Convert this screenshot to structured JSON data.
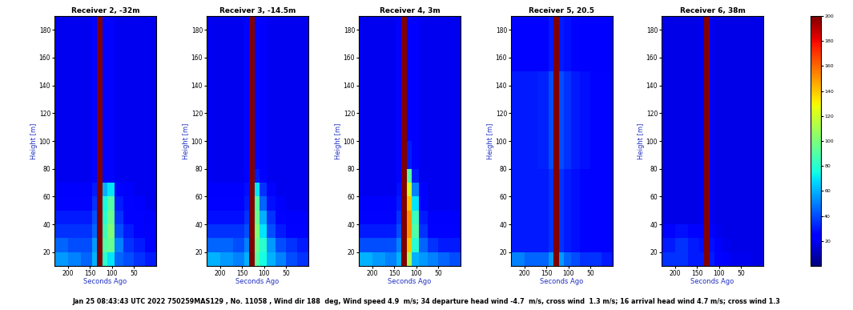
{
  "chart_data": [
    {
      "type": "heatmap",
      "title": "Receiver 2, -32m",
      "x_label": "Seconds Ago",
      "y_label": "Height [m]",
      "xlim": [
        230,
        0
      ],
      "ylim": [
        10,
        190
      ],
      "xticks": [
        200,
        150,
        100,
        50
      ],
      "yticks": [
        20,
        40,
        60,
        80,
        100,
        120,
        140,
        160,
        180
      ],
      "x_edges": [
        230,
        200,
        170,
        145,
        134,
        122,
        110,
        95,
        75,
        50,
        25,
        0
      ],
      "y_edges": [
        10,
        20,
        30,
        40,
        50,
        60,
        70,
        80,
        100,
        120,
        150,
        190
      ],
      "cells": [
        [
          55,
          50,
          45,
          60,
          200,
          80,
          70,
          45,
          40,
          35,
          30
        ],
        [
          45,
          40,
          40,
          55,
          200,
          90,
          95,
          50,
          35,
          30,
          25
        ],
        [
          35,
          35,
          35,
          45,
          200,
          85,
          100,
          40,
          30,
          25,
          25
        ],
        [
          30,
          30,
          30,
          40,
          200,
          80,
          95,
          35,
          25,
          25,
          22
        ],
        [
          25,
          25,
          25,
          35,
          200,
          75,
          90,
          30,
          25,
          22,
          20
        ],
        [
          22,
          22,
          22,
          30,
          200,
          60,
          70,
          25,
          22,
          20,
          20
        ],
        [
          20,
          20,
          20,
          25,
          200,
          25,
          25,
          20,
          20,
          20,
          20
        ],
        [
          20,
          20,
          20,
          25,
          200,
          25,
          25,
          20,
          20,
          20,
          20
        ],
        [
          20,
          20,
          20,
          25,
          200,
          25,
          25,
          20,
          20,
          20,
          20
        ],
        [
          20,
          20,
          20,
          25,
          200,
          25,
          25,
          20,
          20,
          20,
          20
        ],
        [
          20,
          20,
          20,
          25,
          200,
          25,
          25,
          20,
          20,
          20,
          20
        ]
      ]
    },
    {
      "type": "heatmap",
      "title": "Receiver 3, -14.5m",
      "x_label": "Seconds Ago",
      "y_label": "Height [m]",
      "xlim": [
        230,
        0
      ],
      "ylim": [
        10,
        190
      ],
      "xticks": [
        200,
        150,
        100,
        50
      ],
      "yticks": [
        20,
        40,
        60,
        80,
        100,
        120,
        140,
        160,
        180
      ],
      "x_edges": [
        230,
        200,
        170,
        145,
        134,
        122,
        110,
        95,
        75,
        50,
        25,
        0
      ],
      "y_edges": [
        10,
        20,
        30,
        40,
        50,
        60,
        70,
        80,
        100,
        120,
        150,
        190
      ],
      "cells": [
        [
          60,
          55,
          50,
          60,
          200,
          90,
          75,
          60,
          50,
          40,
          35
        ],
        [
          45,
          45,
          40,
          50,
          200,
          95,
          80,
          55,
          40,
          35,
          30
        ],
        [
          35,
          35,
          35,
          40,
          200,
          100,
          70,
          40,
          30,
          25,
          25
        ],
        [
          28,
          28,
          28,
          35,
          200,
          95,
          60,
          35,
          25,
          22,
          22
        ],
        [
          25,
          25,
          25,
          30,
          200,
          90,
          45,
          28,
          22,
          20,
          20
        ],
        [
          22,
          22,
          22,
          28,
          200,
          70,
          35,
          25,
          20,
          20,
          20
        ],
        [
          20,
          20,
          20,
          25,
          200,
          30,
          25,
          20,
          20,
          20,
          20
        ],
        [
          20,
          20,
          20,
          25,
          200,
          25,
          22,
          20,
          20,
          20,
          20
        ],
        [
          20,
          20,
          20,
          25,
          200,
          25,
          22,
          20,
          20,
          20,
          20
        ],
        [
          20,
          20,
          20,
          25,
          200,
          25,
          22,
          20,
          20,
          20,
          20
        ],
        [
          20,
          20,
          20,
          25,
          200,
          25,
          22,
          20,
          20,
          20,
          20
        ]
      ]
    },
    {
      "type": "heatmap",
      "title": "Receiver 4, 3m",
      "x_label": "Seconds Ago",
      "y_label": "Height [m]",
      "xlim": [
        230,
        0
      ],
      "ylim": [
        10,
        190
      ],
      "xticks": [
        200,
        150,
        100,
        50
      ],
      "yticks": [
        20,
        40,
        60,
        80,
        100,
        120,
        140,
        160,
        180
      ],
      "x_edges": [
        230,
        200,
        170,
        145,
        134,
        122,
        110,
        95,
        75,
        50,
        25,
        0
      ],
      "y_edges": [
        10,
        20,
        30,
        40,
        50,
        60,
        70,
        80,
        100,
        120,
        150,
        190
      ],
      "cells": [
        [
          60,
          55,
          50,
          60,
          200,
          110,
          60,
          55,
          50,
          45,
          40
        ],
        [
          40,
          40,
          40,
          50,
          200,
          140,
          80,
          45,
          35,
          30,
          30
        ],
        [
          30,
          30,
          30,
          40,
          200,
          150,
          90,
          35,
          25,
          25,
          25
        ],
        [
          25,
          25,
          25,
          35,
          200,
          150,
          85,
          30,
          22,
          22,
          22
        ],
        [
          22,
          22,
          22,
          30,
          200,
          140,
          70,
          25,
          20,
          20,
          20
        ],
        [
          20,
          20,
          20,
          28,
          200,
          120,
          50,
          22,
          20,
          20,
          20
        ],
        [
          20,
          20,
          20,
          25,
          200,
          90,
          30,
          20,
          20,
          20,
          20
        ],
        [
          20,
          20,
          20,
          25,
          200,
          30,
          22,
          20,
          20,
          20,
          20
        ],
        [
          20,
          20,
          20,
          25,
          200,
          25,
          22,
          20,
          20,
          20,
          20
        ],
        [
          20,
          20,
          20,
          25,
          200,
          25,
          22,
          20,
          20,
          20,
          20
        ],
        [
          20,
          20,
          20,
          25,
          200,
          25,
          22,
          20,
          20,
          20,
          20
        ]
      ]
    },
    {
      "type": "heatmap",
      "title": "Receiver 5, 20.5",
      "x_label": "Seconds Ago",
      "y_label": "Height [m]",
      "xlim": [
        230,
        0
      ],
      "ylim": [
        10,
        190
      ],
      "xticks": [
        200,
        150,
        100,
        50
      ],
      "yticks": [
        20,
        40,
        60,
        80,
        100,
        120,
        140,
        160,
        180
      ],
      "x_edges": [
        230,
        200,
        170,
        145,
        134,
        122,
        110,
        95,
        75,
        50,
        25,
        0
      ],
      "y_edges": [
        10,
        20,
        30,
        40,
        50,
        60,
        70,
        80,
        100,
        120,
        150,
        190
      ],
      "cells": [
        [
          50,
          45,
          45,
          55,
          200,
          55,
          45,
          40,
          35,
          35,
          30
        ],
        [
          30,
          30,
          30,
          35,
          200,
          35,
          30,
          28,
          25,
          25,
          25
        ],
        [
          30,
          30,
          30,
          35,
          200,
          35,
          30,
          28,
          25,
          25,
          25
        ],
        [
          30,
          30,
          30,
          35,
          200,
          35,
          30,
          28,
          25,
          25,
          25
        ],
        [
          30,
          30,
          30,
          35,
          200,
          35,
          30,
          28,
          25,
          25,
          25
        ],
        [
          30,
          30,
          30,
          35,
          200,
          35,
          30,
          28,
          25,
          25,
          25
        ],
        [
          30,
          30,
          30,
          35,
          200,
          35,
          30,
          28,
          25,
          25,
          25
        ],
        [
          30,
          30,
          32,
          40,
          200,
          40,
          35,
          30,
          28,
          25,
          25
        ],
        [
          30,
          30,
          32,
          40,
          200,
          40,
          35,
          30,
          28,
          25,
          25
        ],
        [
          30,
          30,
          32,
          40,
          200,
          40,
          35,
          30,
          28,
          25,
          25
        ],
        [
          25,
          25,
          25,
          30,
          200,
          30,
          28,
          25,
          22,
          22,
          22
        ]
      ]
    },
    {
      "type": "heatmap",
      "title": "Receiver 6, 38m",
      "x_label": "Seconds Ago",
      "y_label": "Height [m]",
      "xlim": [
        230,
        0
      ],
      "ylim": [
        10,
        190
      ],
      "xticks": [
        200,
        150,
        100,
        50
      ],
      "yticks": [
        20,
        40,
        60,
        80,
        100,
        120,
        140,
        160,
        180
      ],
      "x_edges": [
        230,
        200,
        170,
        145,
        134,
        122,
        110,
        95,
        75,
        50,
        25,
        0
      ],
      "y_edges": [
        10,
        20,
        30,
        40,
        50,
        60,
        70,
        80,
        100,
        120,
        150,
        190
      ],
      "cells": [
        [
          35,
          35,
          30,
          30,
          200,
          30,
          25,
          22,
          20,
          20,
          18
        ],
        [
          30,
          35,
          30,
          28,
          200,
          28,
          22,
          20,
          18,
          18,
          18
        ],
        [
          25,
          28,
          25,
          25,
          200,
          25,
          20,
          18,
          18,
          18,
          18
        ],
        [
          18,
          18,
          18,
          20,
          200,
          20,
          18,
          18,
          18,
          18,
          18
        ],
        [
          18,
          18,
          18,
          20,
          200,
          20,
          18,
          18,
          18,
          18,
          18
        ],
        [
          18,
          18,
          18,
          20,
          200,
          20,
          18,
          18,
          18,
          18,
          18
        ],
        [
          18,
          18,
          18,
          20,
          200,
          20,
          18,
          18,
          18,
          18,
          18
        ],
        [
          18,
          18,
          18,
          20,
          200,
          20,
          18,
          18,
          18,
          18,
          18
        ],
        [
          18,
          18,
          18,
          20,
          200,
          20,
          18,
          18,
          18,
          18,
          18
        ],
        [
          18,
          18,
          18,
          20,
          200,
          20,
          18,
          18,
          18,
          18,
          18
        ],
        [
          18,
          18,
          18,
          20,
          200,
          20,
          18,
          18,
          18,
          18,
          18
        ]
      ]
    }
  ],
  "colorbar": {
    "range": [
      0,
      200
    ],
    "ticks": [
      20,
      40,
      60,
      80,
      100,
      120,
      140,
      160,
      180,
      200
    ]
  },
  "caption": "Jan 25 08:43:43 UTC 2022 750259MAS129 , No. 11058 , Wind dir 188  deg, Wind speed 4.9  m/s; 34 departure head wind -4.7  m/s, cross wind  1.3 m/s; 16 arrival head wind 4.7 m/s; cross wind 1.3"
}
